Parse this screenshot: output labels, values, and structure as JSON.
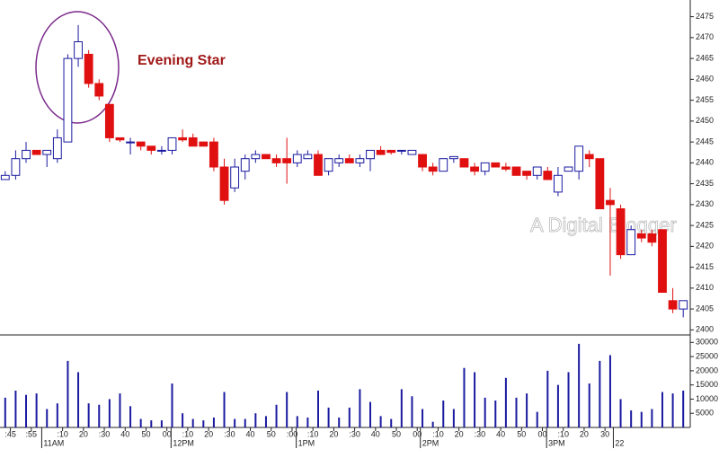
{
  "chart_data": [
    {
      "type": "candlestick",
      "annotation": "Evening Star",
      "watermark": "A Digital Blogger",
      "xlim": [
        -0.5,
        65.5
      ],
      "ylim": [
        2399,
        2479
      ],
      "yticks": [
        2400,
        2405,
        2410,
        2415,
        2420,
        2425,
        2430,
        2435,
        2440,
        2445,
        2450,
        2455,
        2460,
        2465,
        2470,
        2475
      ],
      "up_color": "#1a1aa0",
      "down_color": "#e01010",
      "open": [
        2436,
        2437,
        2441,
        2443,
        2442,
        2441,
        2445,
        2465,
        2466,
        2459,
        2454,
        2446,
        2445,
        2445,
        2444,
        2443,
        2443,
        2446,
        2446,
        2445,
        2445,
        2439,
        2434,
        2438,
        2441,
        2442,
        2441,
        2441,
        2440,
        2441,
        2442,
        2438,
        2440,
        2441,
        2440,
        2441,
        2443,
        2443,
        2443,
        2442,
        2442,
        2439,
        2438,
        2441,
        2441,
        2439,
        2438,
        2440,
        2439,
        2439,
        2438,
        2437,
        2438,
        2433,
        2438,
        2438,
        2442,
        2441,
        2431,
        2429,
        2418,
        2423,
        2423,
        2424,
        2407,
        2405
      ],
      "high": [
        2438,
        2443,
        2445,
        2443,
        2443,
        2448,
        2466,
        2473,
        2467,
        2460,
        2454,
        2446,
        2446,
        2445,
        2444,
        2444,
        2446,
        2448,
        2447,
        2445,
        2446,
        2441,
        2441,
        2442,
        2443,
        2442,
        2442,
        2446,
        2443,
        2443,
        2443,
        2441,
        2442,
        2442,
        2442,
        2443,
        2444,
        2443,
        2443,
        2443,
        2442,
        2440,
        2441,
        2441,
        2441,
        2440,
        2440,
        2440,
        2440,
        2439,
        2438,
        2439,
        2439,
        2439,
        2439,
        2444,
        2443,
        2441,
        2434,
        2430,
        2425,
        2424,
        2424,
        2424,
        2410,
        2407
      ],
      "low": [
        2436,
        2436,
        2440,
        2442,
        2439,
        2440,
        2445,
        2463,
        2458,
        2455,
        2445,
        2445,
        2442,
        2443,
        2442,
        2442,
        2442,
        2445,
        2444,
        2444,
        2438,
        2430,
        2433,
        2436,
        2440,
        2441,
        2439,
        2435,
        2439,
        2441,
        2437,
        2437,
        2439,
        2440,
        2439,
        2438,
        2442,
        2442,
        2442,
        2442,
        2438,
        2437,
        2438,
        2440,
        2439,
        2437,
        2437,
        2439,
        2438,
        2437,
        2436,
        2436,
        2436,
        2432,
        2438,
        2436,
        2439,
        2429,
        2413,
        2417,
        2418,
        2421,
        2420,
        2409,
        2404,
        2403
      ],
      "close": [
        2437,
        2441,
        2443,
        2442,
        2443,
        2446,
        2465,
        2469,
        2459,
        2456,
        2446,
        2445.5,
        2445,
        2444,
        2443,
        2443,
        2446,
        2445.5,
        2444,
        2444,
        2439,
        2431,
        2439,
        2441,
        2442,
        2441,
        2440,
        2440,
        2442,
        2442,
        2437,
        2441,
        2441,
        2440,
        2441,
        2443,
        2442,
        2442.5,
        2443,
        2443,
        2439,
        2438,
        2441,
        2441.5,
        2439,
        2438,
        2440,
        2439,
        2438.5,
        2437,
        2437,
        2439,
        2436,
        2437,
        2439,
        2444,
        2441,
        2429,
        2430,
        2418,
        2424,
        2422,
        2421,
        2409,
        2405,
        2407
      ]
    },
    {
      "type": "bar",
      "xlim": [
        -0.5,
        65.5
      ],
      "ylim": [
        0,
        32000
      ],
      "yticks": [
        5000,
        10000,
        15000,
        20000,
        25000,
        30000
      ],
      "color": "#1a1aa0",
      "values": [
        10500,
        13000,
        11500,
        12000,
        6500,
        8500,
        23500,
        19500,
        8500,
        8000,
        10000,
        12000,
        7500,
        3000,
        2500,
        2500,
        15500,
        5000,
        3000,
        2500,
        3500,
        12500,
        3000,
        3000,
        5000,
        4000,
        8000,
        12500,
        4000,
        3500,
        13000,
        7000,
        3500,
        7000,
        13500,
        9000,
        4000,
        3000,
        13500,
        11000,
        6500,
        2000,
        9500,
        6500,
        21000,
        19500,
        10500,
        9500,
        17500,
        10500,
        12000,
        5500,
        20000,
        15000,
        19500,
        29500,
        15500,
        23500,
        25500,
        10000,
        6000,
        5500,
        6500,
        12500,
        12000,
        13000
      ],
      "xticks": [
        {
          "value": 0.5,
          "label": ":45"
        },
        {
          "value": 2.5,
          "label": ":55"
        },
        {
          "value": 5.5,
          "label": ":10"
        },
        {
          "value": 7.5,
          "label": "20"
        },
        {
          "value": 9.5,
          "label": ":30"
        },
        {
          "value": 11.5,
          "label": "40"
        },
        {
          "value": 13.5,
          "label": "50"
        },
        {
          "value": 15.5,
          "label": "00"
        },
        {
          "value": 17.5,
          "label": ":10"
        },
        {
          "value": 19.5,
          "label": "20"
        },
        {
          "value": 21.5,
          "label": ":30"
        },
        {
          "value": 23.5,
          "label": "40"
        },
        {
          "value": 25.5,
          "label": "50"
        },
        {
          "value": 27.5,
          "label": ":00"
        },
        {
          "value": 29.5,
          "label": ":10"
        },
        {
          "value": 31.5,
          "label": "20"
        },
        {
          "value": 33.5,
          "label": ":30"
        },
        {
          "value": 35.5,
          "label": "40"
        },
        {
          "value": 37.5,
          "label": "50"
        },
        {
          "value": 39.5,
          "label": "00"
        },
        {
          "value": 41.5,
          "label": ":10"
        },
        {
          "value": 43.5,
          "label": "20"
        },
        {
          "value": 45.5,
          "label": ":30"
        },
        {
          "value": 47.5,
          "label": "40"
        },
        {
          "value": 49.5,
          "label": "50"
        },
        {
          "value": 51.5,
          "label": "00"
        },
        {
          "value": 53.5,
          "label": ":10"
        },
        {
          "value": 55.5,
          "label": "20"
        },
        {
          "value": 57.5,
          "label": "30"
        }
      ],
      "xlabels": [
        {
          "value": 3.5,
          "label": "11AM"
        },
        {
          "value": 15.9,
          "label": "12PM"
        },
        {
          "value": 27.9,
          "label": "1PM"
        },
        {
          "value": 39.8,
          "label": "2PM"
        },
        {
          "value": 51.9,
          "label": "3PM"
        },
        {
          "value": 58.3,
          "label": "22"
        }
      ]
    }
  ]
}
